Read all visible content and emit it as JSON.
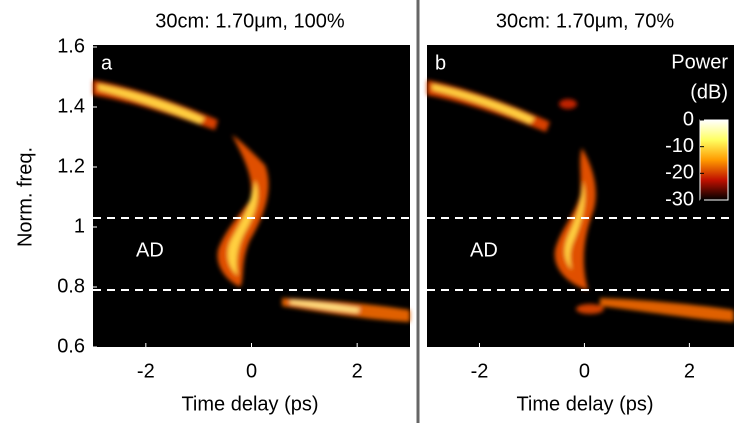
{
  "chart_data": [
    {
      "type": "heatmap",
      "title": "30cm: 1.70μm, 100%",
      "panel_label": "a",
      "xlabel": "Time delay (ps)",
      "ylabel": "Norm. freq.",
      "xlim": [
        -3,
        3
      ],
      "xticks": [
        -2,
        0,
        2
      ],
      "ylim": [
        0.6,
        1.6
      ],
      "yticks": [
        0.6,
        0.8,
        1,
        1.2,
        1.4,
        1.6
      ],
      "hlines": [
        1.03,
        0.79
      ],
      "annotation": "AD"
    },
    {
      "type": "heatmap",
      "title": "30cm: 1.70μm, 70%",
      "panel_label": "b",
      "xlabel": "Time delay (ps)",
      "xlim": [
        -3,
        2.85
      ],
      "xticks": [
        -2,
        0,
        2
      ],
      "ylim": [
        0.6,
        1.6
      ],
      "hlines": [
        1.03,
        0.79
      ],
      "annotation": "AD",
      "colorbar": {
        "label_lines": [
          "Power",
          "(dB)"
        ],
        "clim": [
          -30,
          0
        ],
        "ticks": [
          0,
          -10,
          -20,
          -30
        ]
      }
    }
  ]
}
